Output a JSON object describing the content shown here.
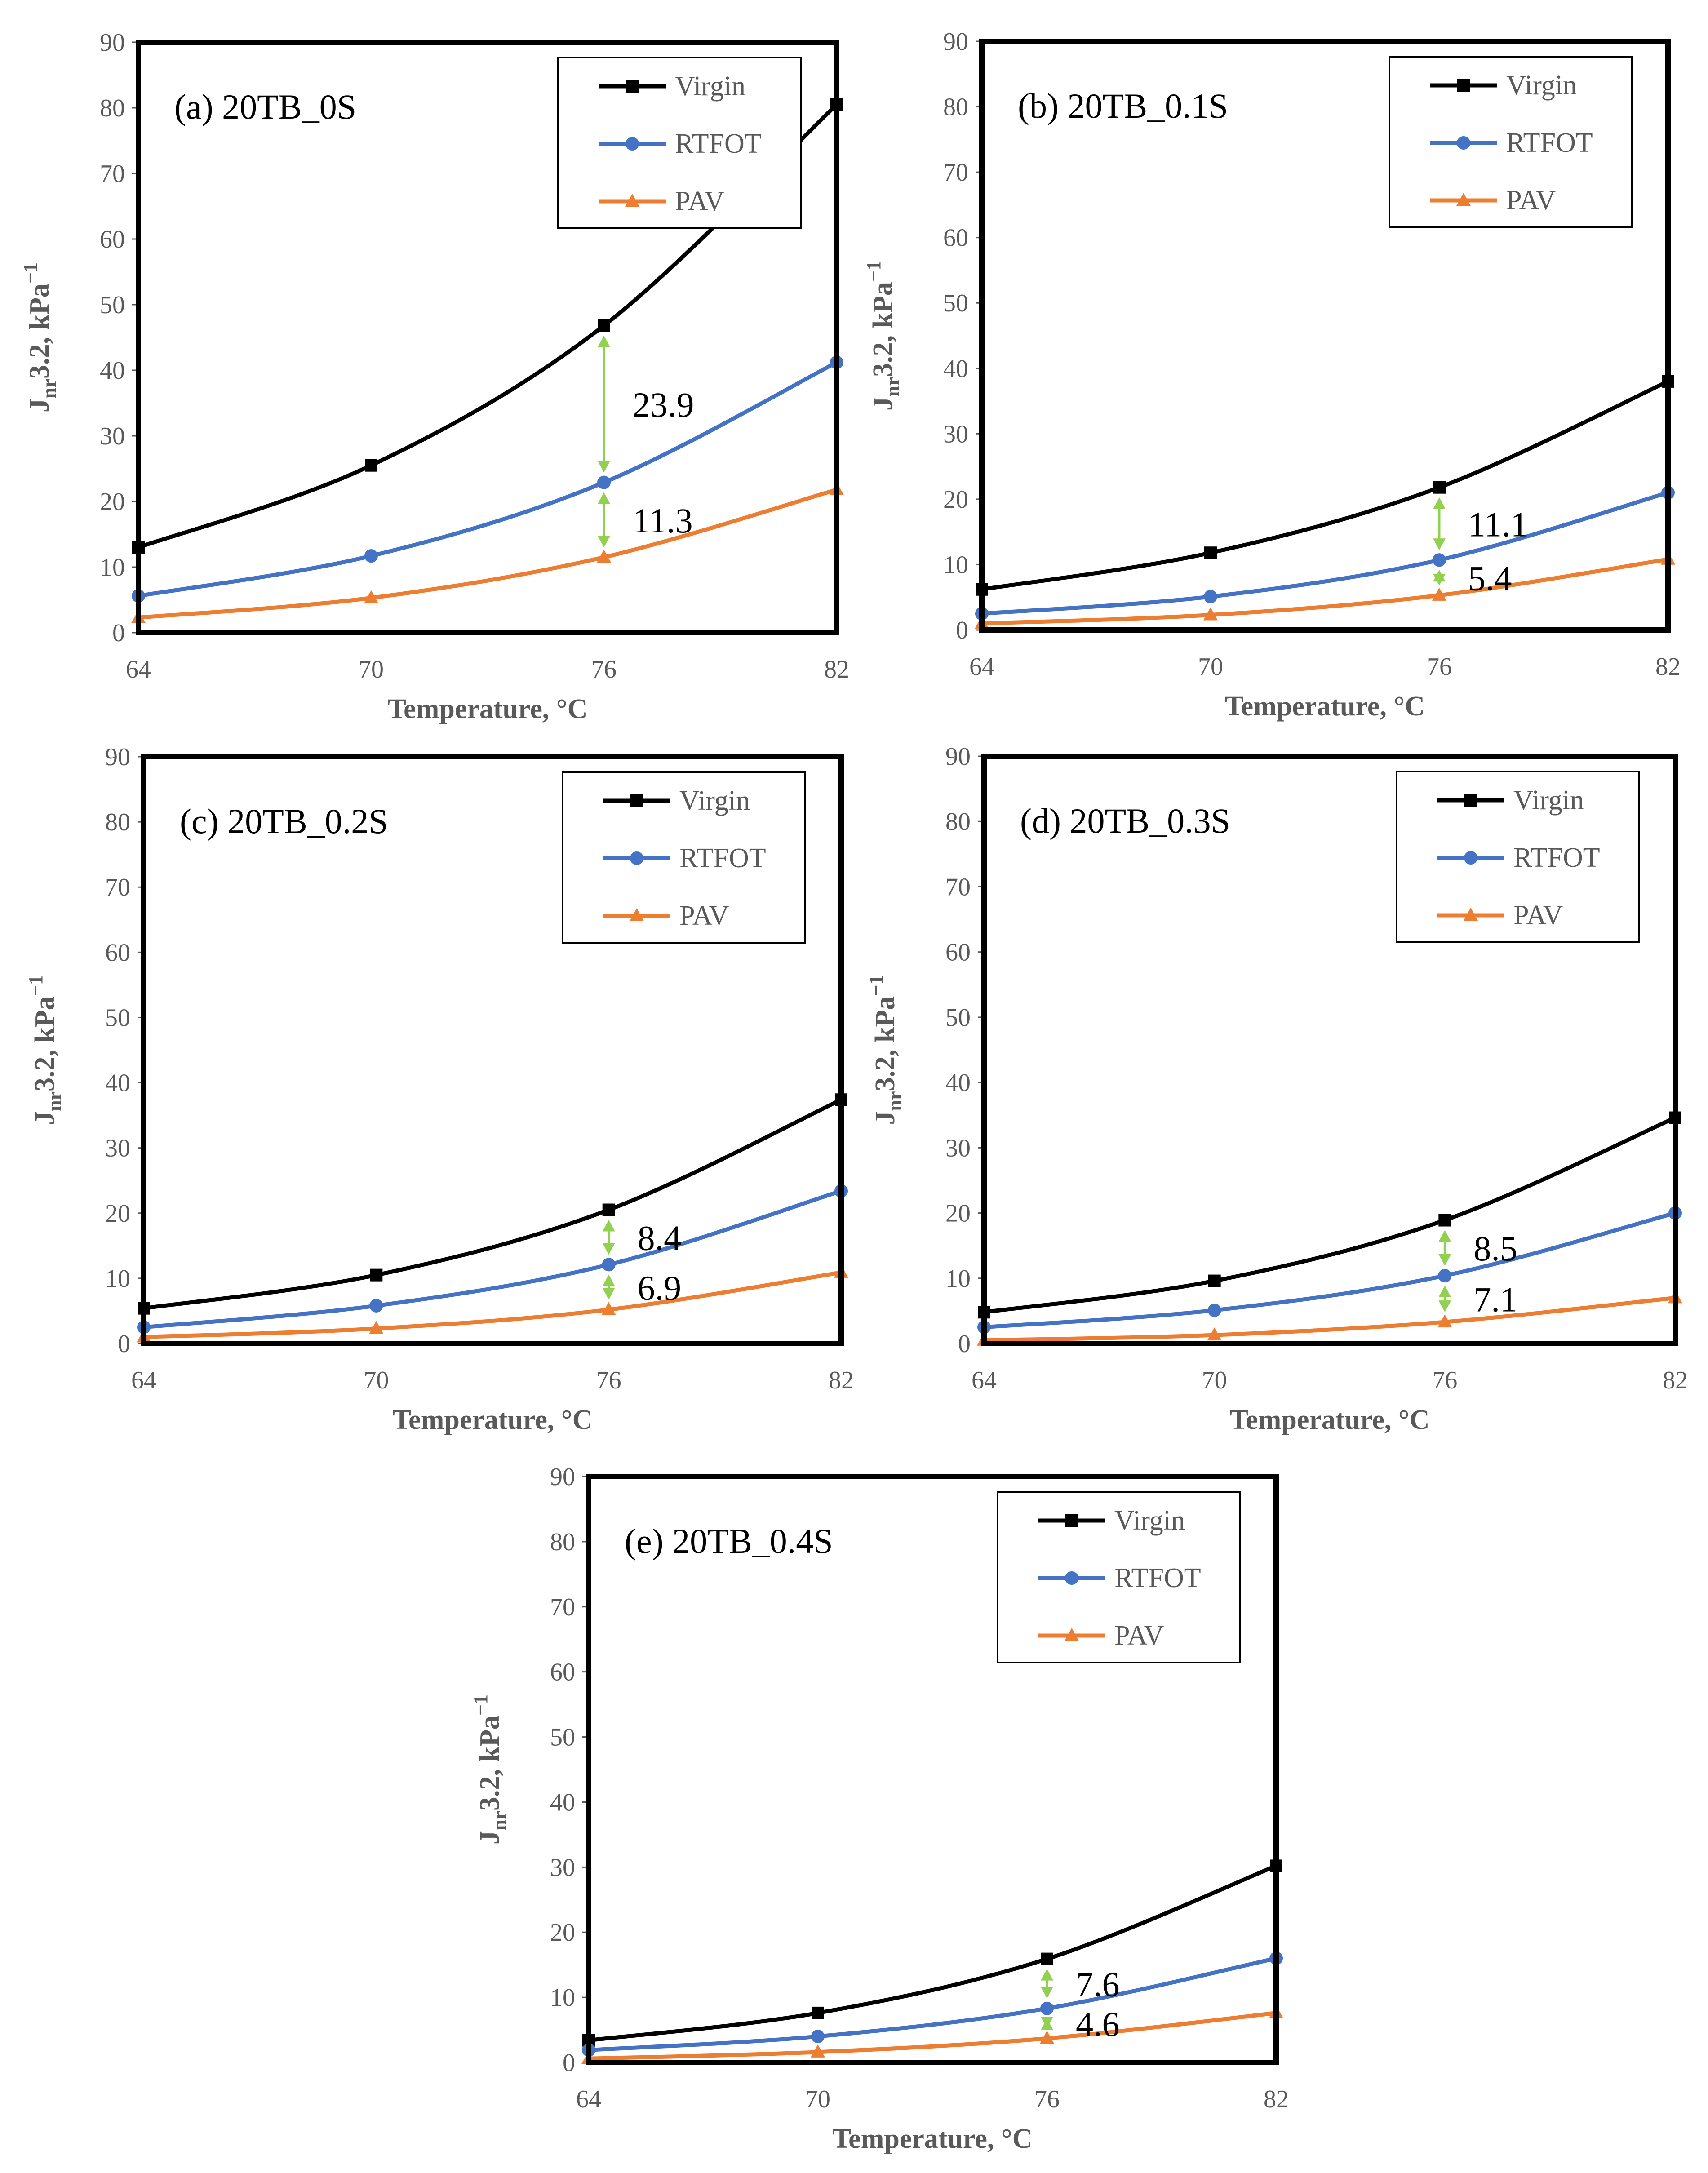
{
  "figure": {
    "colors": {
      "virgin": "#000000",
      "rtfot": "#4472C4",
      "pav": "#ED7D31",
      "arrow": "#92D050",
      "frame": "#000000",
      "tick": "#595959"
    }
  },
  "chart_data": [
    {
      "type": "line",
      "title": "(a) 20TB_0S",
      "xlabel": "Temperature, °C",
      "ylabel": "Jnr3.2, kPa⁻¹",
      "ylabel_main": "J",
      "ylabel_sub": "nr",
      "ylabel_rest": "3.2, kPa",
      "ylabel_sup": "−1",
      "x": [
        64,
        70,
        76,
        82
      ],
      "xticks": [
        "64",
        "70",
        "76",
        "82"
      ],
      "yticks": [
        "0",
        "10",
        "20",
        "30",
        "40",
        "50",
        "60",
        "70",
        "80",
        "90"
      ],
      "xlim": [
        64,
        82
      ],
      "ylim": [
        0,
        90
      ],
      "legend": "top-right",
      "series": [
        {
          "name": "Virgin",
          "marker": "square",
          "values": [
            13.0,
            25.5,
            46.8,
            80.5
          ]
        },
        {
          "name": "RTFOT",
          "marker": "circle",
          "values": [
            5.6,
            11.7,
            22.9,
            41.2
          ]
        },
        {
          "name": "PAV",
          "marker": "triangle",
          "values": [
            2.3,
            5.3,
            11.5,
            21.8
          ]
        }
      ],
      "annotations": [
        {
          "text": "23.9",
          "x": 76,
          "from": 22.9,
          "to": 46.8
        },
        {
          "text": "11.3",
          "x": 76,
          "from": 11.5,
          "to": 22.9
        }
      ]
    },
    {
      "type": "line",
      "title": "(b) 20TB_0.1S",
      "xlabel": "Temperature, °C",
      "ylabel": "Jnr3.2, kPa⁻¹",
      "ylabel_main": "J",
      "ylabel_sub": "nr",
      "ylabel_rest": "3.2, kPa",
      "ylabel_sup": "−1",
      "x": [
        64,
        70,
        76,
        82
      ],
      "xticks": [
        "64",
        "70",
        "76",
        "82"
      ],
      "yticks": [
        "0",
        "10",
        "20",
        "30",
        "40",
        "50",
        "60",
        "70",
        "80",
        "90"
      ],
      "xlim": [
        64,
        82
      ],
      "ylim": [
        0,
        90
      ],
      "legend": "top-right",
      "series": [
        {
          "name": "Virgin",
          "marker": "square",
          "values": [
            6.2,
            11.8,
            21.8,
            38.0
          ]
        },
        {
          "name": "RTFOT",
          "marker": "circle",
          "values": [
            2.5,
            5.1,
            10.7,
            21.0
          ]
        },
        {
          "name": "PAV",
          "marker": "triangle",
          "values": [
            1.0,
            2.3,
            5.3,
            10.8
          ]
        }
      ],
      "annotations": [
        {
          "text": "11.1",
          "x": 76,
          "from": 10.7,
          "to": 21.8
        },
        {
          "text": "5.4",
          "x": 76,
          "from": 5.3,
          "to": 10.7
        }
      ]
    },
    {
      "type": "line",
      "title": "(c) 20TB_0.2S",
      "xlabel": "Temperature, °C",
      "ylabel": "Jnr3.2, kPa⁻¹",
      "ylabel_main": "J",
      "ylabel_sub": "nr",
      "ylabel_rest": "3.2, kPa",
      "ylabel_sup": "−1",
      "x": [
        64,
        70,
        76,
        82
      ],
      "xticks": [
        "64",
        "70",
        "76",
        "82"
      ],
      "yticks": [
        "0",
        "10",
        "20",
        "30",
        "40",
        "50",
        "60",
        "70",
        "80",
        "90"
      ],
      "xlim": [
        64,
        82
      ],
      "ylim": [
        0,
        90
      ],
      "legend": "top-right",
      "series": [
        {
          "name": "Virgin",
          "marker": "square",
          "values": [
            5.4,
            10.5,
            20.5,
            37.4
          ]
        },
        {
          "name": "RTFOT",
          "marker": "circle",
          "values": [
            2.5,
            5.8,
            12.1,
            23.4
          ]
        },
        {
          "name": "PAV",
          "marker": "triangle",
          "values": [
            1.0,
            2.3,
            5.2,
            10.9
          ]
        }
      ],
      "annotations": [
        {
          "text": "8.4",
          "x": 76,
          "from": 12.1,
          "to": 20.5
        },
        {
          "text": "6.9",
          "x": 76,
          "from": 5.2,
          "to": 12.1
        }
      ]
    },
    {
      "type": "line",
      "title": "(d) 20TB_0.3S",
      "xlabel": "Temperature, °C",
      "ylabel": "Jnr3.2, kPa⁻¹",
      "ylabel_main": "J",
      "ylabel_sub": "nr",
      "ylabel_rest": "3.2, kPa",
      "ylabel_sup": "−1",
      "x": [
        64,
        70,
        76,
        82
      ],
      "xticks": [
        "64",
        "70",
        "76",
        "82"
      ],
      "yticks": [
        "0",
        "10",
        "20",
        "30",
        "40",
        "50",
        "60",
        "70",
        "80",
        "90"
      ],
      "xlim": [
        64,
        82
      ],
      "ylim": [
        0,
        90
      ],
      "legend": "top-right",
      "series": [
        {
          "name": "Virgin",
          "marker": "square",
          "values": [
            4.8,
            9.6,
            18.9,
            34.6
          ]
        },
        {
          "name": "RTFOT",
          "marker": "circle",
          "values": [
            2.5,
            5.1,
            10.4,
            20.0
          ]
        },
        {
          "name": "PAV",
          "marker": "triangle",
          "values": [
            0.5,
            1.3,
            3.3,
            7.0
          ]
        }
      ],
      "annotations": [
        {
          "text": "8.5",
          "x": 76,
          "from": 10.4,
          "to": 18.9
        },
        {
          "text": "7.1",
          "x": 76,
          "from": 3.3,
          "to": 10.4
        }
      ]
    },
    {
      "type": "line",
      "title": "(e) 20TB_0.4S",
      "xlabel": "Temperature, °C",
      "ylabel": "Jnr3.2, kPa⁻¹",
      "ylabel_main": "J",
      "ylabel_sub": "nr",
      "ylabel_rest": "3.2, kPa",
      "ylabel_sup": "−1",
      "x": [
        64,
        70,
        76,
        82
      ],
      "xticks": [
        "64",
        "70",
        "76",
        "82"
      ],
      "yticks": [
        "0",
        "10",
        "20",
        "30",
        "40",
        "50",
        "60",
        "70",
        "80",
        "90"
      ],
      "xlim": [
        64,
        82
      ],
      "ylim": [
        0,
        90
      ],
      "legend": "top-right",
      "series": [
        {
          "name": "Virgin",
          "marker": "square",
          "values": [
            3.4,
            7.6,
            15.9,
            30.2
          ]
        },
        {
          "name": "RTFOT",
          "marker": "circle",
          "values": [
            1.9,
            4.0,
            8.3,
            16.0
          ]
        },
        {
          "name": "PAV",
          "marker": "triangle",
          "values": [
            0.6,
            1.6,
            3.7,
            7.6
          ]
        }
      ],
      "annotations": [
        {
          "text": "7.6",
          "x": 76,
          "from": 8.3,
          "to": 15.9
        },
        {
          "text": "4.6",
          "x": 76,
          "from": 3.7,
          "to": 8.3
        }
      ]
    }
  ]
}
